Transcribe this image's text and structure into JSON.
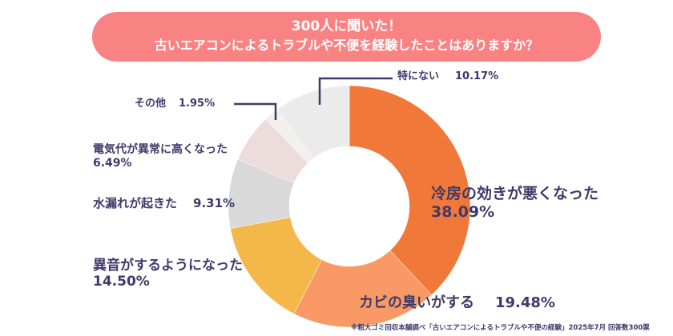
{
  "header": {
    "title": "300人に聞いた！",
    "subtitle": "古いエアコンによるトラブルや不便を経験したことはありますか？",
    "banner_color": "#f98383"
  },
  "chart_data": {
    "type": "pie",
    "style": "donut",
    "start": "top, clockwise",
    "categories": [
      "冷房の効きが悪くなった",
      "カビの臭いがする",
      "異音がするようになった",
      "水漏れが起きた",
      "電気代が異常に高くなった",
      "その他",
      "特にない"
    ],
    "values": [
      38.09,
      19.48,
      14.5,
      9.31,
      6.49,
      1.95,
      10.17
    ],
    "value_labels": [
      "38.09%",
      "19.48%",
      "14.50%",
      "9.31%",
      "6.49%",
      "1.95%",
      "10.17%"
    ],
    "colors": [
      "#f07838",
      "#f99a66",
      "#f4b84a",
      "#d9d9d9",
      "#ecdcdc",
      "#f3efee",
      "#ebebeb"
    ],
    "label_color": "#3d3a6b"
  },
  "footnote": "※粗大ゴミ回収本舗調べ「古いエアコンによるトラブルや不便の経験」2025年7月 回答数300票"
}
